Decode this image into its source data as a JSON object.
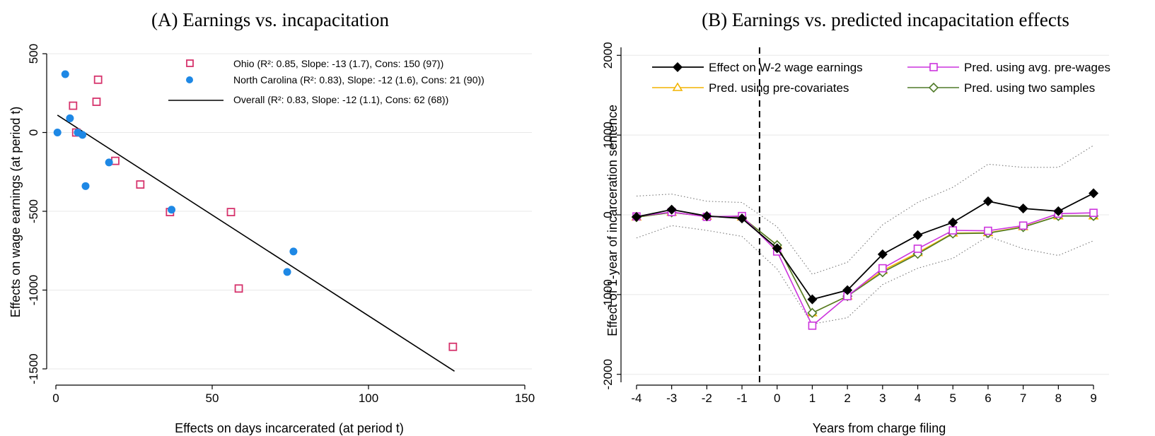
{
  "chart_data": [
    {
      "panel": "A",
      "type": "scatter",
      "title": "(A) Earnings vs. incapacitation",
      "xlabel": "Effects on days incarcerated (at period t)",
      "ylabel": "Effects on wage earnings (at period t)",
      "xlim": [
        0,
        150
      ],
      "ylim": [
        -1500,
        500
      ],
      "xticks": [
        0,
        50,
        100,
        150
      ],
      "yticks": [
        500,
        0,
        -500,
        -1000,
        -1500
      ],
      "grid": true,
      "legend_position": "top-right",
      "colors": {
        "ohio": "#d6336c",
        "nc": "#1e88e5",
        "line": "#000000"
      },
      "series": [
        {
          "name": "Ohio (R²: 0.85, Slope: -13 (1.7), Cons: 150 (97))",
          "marker": "hollow-square",
          "points": [
            [
              5.5,
              170
            ],
            [
              6.5,
              0
            ],
            [
              13,
              195
            ],
            [
              13.5,
              335
            ],
            [
              19,
              -180
            ],
            [
              27,
              -330
            ],
            [
              36.5,
              -505
            ],
            [
              56,
              -505
            ],
            [
              58.5,
              -990
            ],
            [
              127,
              -1360
            ]
          ]
        },
        {
          "name": "North Carolina (R²: 0.83), Slope: -12 (1.6), Cons: 21 (90))",
          "marker": "filled-circle",
          "points": [
            [
              0.5,
              0
            ],
            [
              3,
              370
            ],
            [
              4.5,
              90
            ],
            [
              7,
              0
            ],
            [
              8.5,
              -15
            ],
            [
              9.5,
              -340
            ],
            [
              17,
              -190
            ],
            [
              37,
              -490
            ],
            [
              74,
              -885
            ],
            [
              76,
              -755
            ]
          ]
        },
        {
          "name": "Overall (R²: 0.83, Slope: -12 (1.1), Cons: 62 (68))",
          "line": [
            [
              0.5,
              110
            ],
            [
              127.5,
              -1515
            ]
          ]
        }
      ]
    },
    {
      "panel": "B",
      "type": "line",
      "title": "(B) Earnings vs. predicted incapacitation effects",
      "xlabel": "Years from charge filing",
      "ylabel": "Effect of 1-year of incarceration sentence",
      "x": [
        -4,
        -3,
        -2,
        -1,
        0,
        1,
        2,
        3,
        4,
        5,
        6,
        7,
        8,
        9
      ],
      "xlim": [
        -4.2,
        9.2
      ],
      "ylim": [
        -2100,
        2100
      ],
      "yticks": [
        2000,
        1000,
        0,
        -1000,
        -2000
      ],
      "vline_x": -0.5,
      "grid": true,
      "legend_position": "top",
      "colors": {
        "actual": "#000000",
        "avg_pre": "#cc33dd",
        "pre_cov": "#f2b400",
        "two": "#4f7a28",
        "ci": "#777777"
      },
      "series": [
        {
          "name": "Effect on W-2 wage earnings",
          "marker": "filled-diamond",
          "values": [
            -25,
            65,
            -15,
            -45,
            -420,
            -1060,
            -945,
            -495,
            -255,
            -95,
            170,
            80,
            45,
            270
          ]
        },
        {
          "name": "Pred. using avg. pre-wages",
          "marker": "hollow-square",
          "values": [
            -20,
            35,
            -25,
            -15,
            -460,
            -1390,
            -1020,
            -670,
            -425,
            -195,
            -200,
            -135,
            15,
            25
          ]
        },
        {
          "name": "Pred. using pre-covariates",
          "marker": "hollow-triangle",
          "values": [
            -30,
            30,
            -20,
            -30,
            -380,
            -1230,
            -1020,
            -700,
            -475,
            -230,
            -225,
            -150,
            -15,
            -15
          ]
        },
        {
          "name": "Pred. using two samples",
          "marker": "hollow-diamond",
          "values": [
            -30,
            30,
            -20,
            -30,
            -380,
            -1230,
            -1020,
            -720,
            -490,
            -235,
            -230,
            -155,
            -15,
            -15
          ]
        }
      ],
      "ci_upper": [
        235,
        260,
        170,
        155,
        -150,
        -745,
        -595,
        -125,
        155,
        345,
        635,
        595,
        595,
        870
      ],
      "ci_lower": [
        -290,
        -135,
        -195,
        -270,
        -680,
        -1370,
        -1290,
        -875,
        -670,
        -545,
        -270,
        -425,
        -510,
        -325
      ]
    }
  ]
}
